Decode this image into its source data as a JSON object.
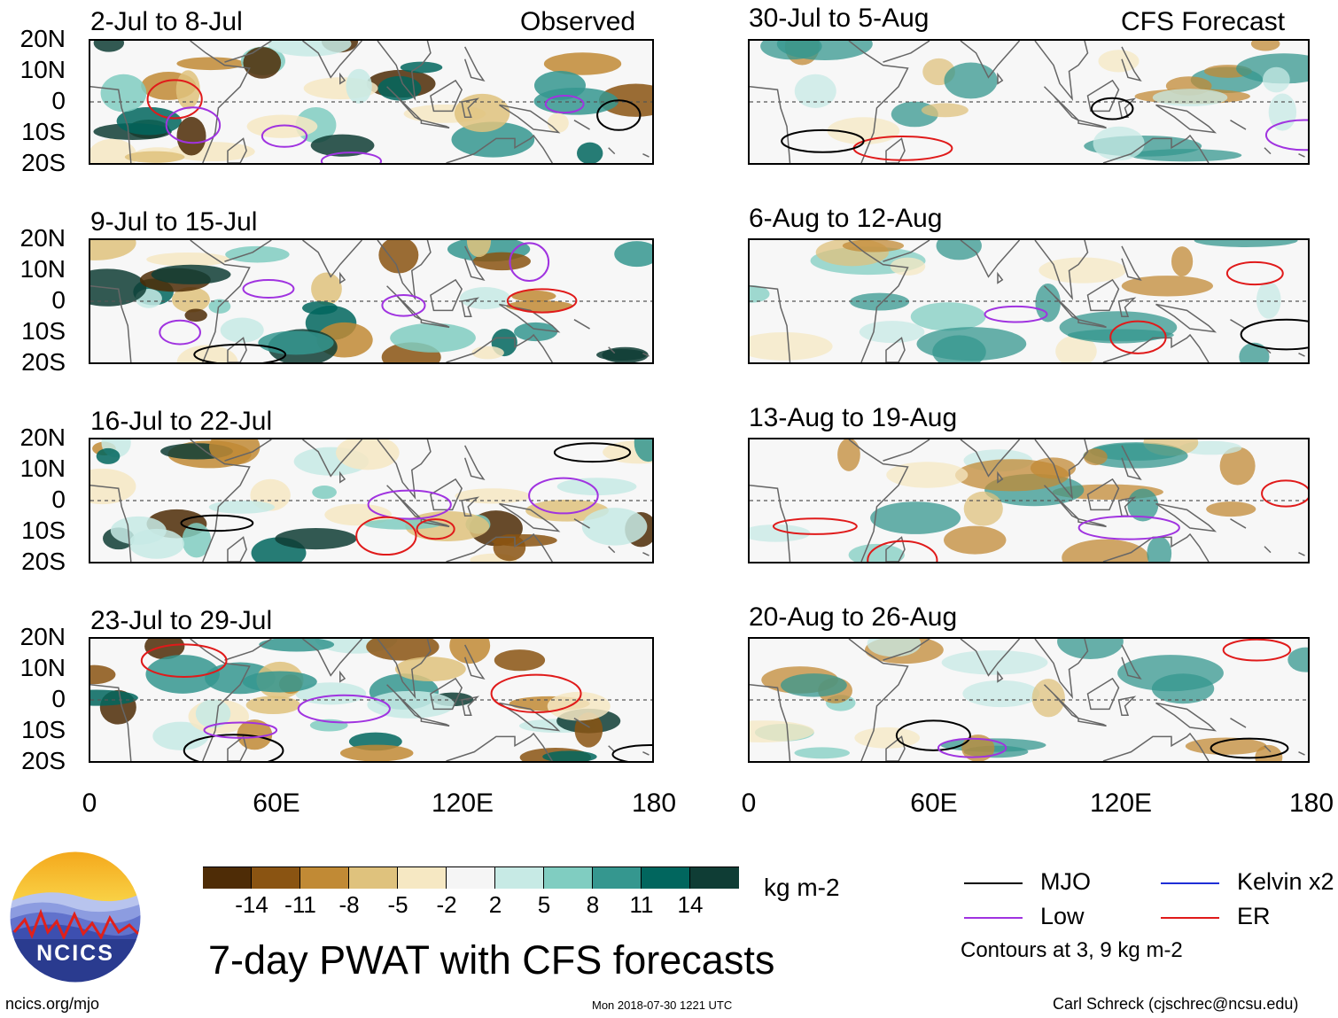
{
  "chart_data": {
    "type": "heatmap",
    "title": "7-day PWAT with CFS forecasts",
    "colorbar": {
      "units": "kg m-2",
      "ticks": [
        "-14",
        "-11",
        "-8",
        "-5",
        "-2",
        "2",
        "5",
        "8",
        "11",
        "14"
      ],
      "colors": [
        "#4e2c06",
        "#8a5412",
        "#c18a35",
        "#dfc27d",
        "#f6e8c3",
        "#f5f5f5",
        "#c7eae5",
        "#80cdc1",
        "#35978f",
        "#01665e",
        "#0f3d35"
      ]
    },
    "x_axis": {
      "ticks": [
        "0",
        "60E",
        "120E",
        "180"
      ],
      "range": [
        0,
        180
      ]
    },
    "y_axis": {
      "ticks": [
        "20N",
        "10N",
        "0",
        "10S",
        "20S"
      ],
      "range": [
        -20,
        20
      ]
    },
    "observed_label": "Observed",
    "forecast_label": "CFS Forecast",
    "observed_panels": [
      {
        "period": "2-Jul to 8-Jul"
      },
      {
        "period": "9-Jul to 15-Jul"
      },
      {
        "period": "16-Jul to 22-Jul"
      },
      {
        "period": "23-Jul to 29-Jul"
      }
    ],
    "forecast_panels": [
      {
        "period": "30-Jul to 5-Aug"
      },
      {
        "period": "6-Aug to 12-Aug"
      },
      {
        "period": "13-Aug to 19-Aug"
      },
      {
        "period": "20-Aug to 26-Aug"
      }
    ],
    "legend": {
      "items": [
        {
          "label": "MJO",
          "color": "#000000"
        },
        {
          "label": "Kelvin x2",
          "color": "#1f2fd6"
        },
        {
          "label": "Low",
          "color": "#a033e0"
        },
        {
          "label": "ER",
          "color": "#e01a1a"
        }
      ],
      "note": "Contours at 3, 9 kg m-2"
    }
  },
  "footer": {
    "logo_text": "NCICS",
    "website": "ncics.org/mjo",
    "timestamp": "Mon 2018-07-30 1221 UTC",
    "credit": "Carl Schreck (cjschrec@ncsu.edu)"
  }
}
